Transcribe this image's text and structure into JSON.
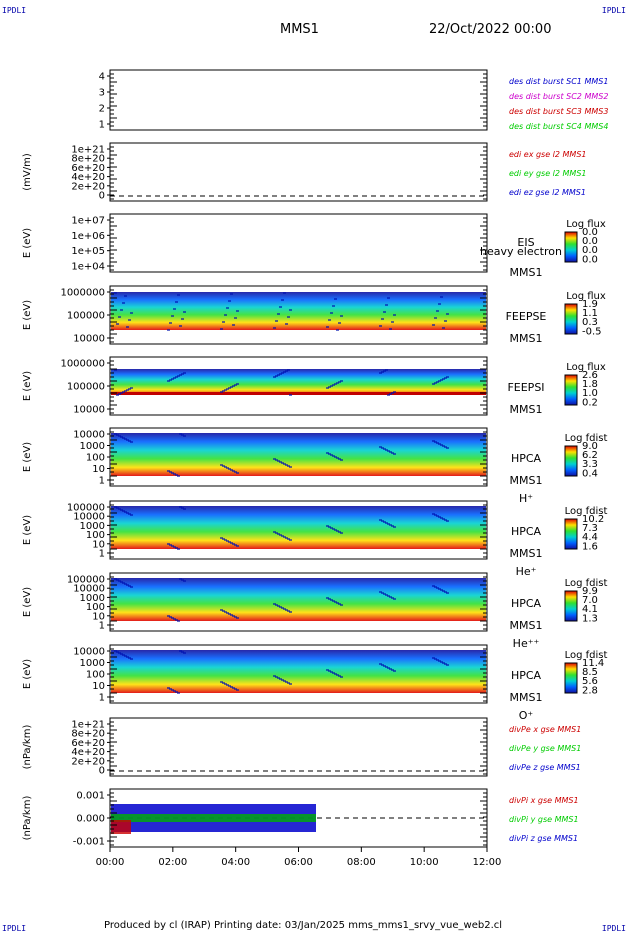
{
  "corners": {
    "tl": "IPDLI",
    "tr": "IPDLI",
    "bl": "IPDLI",
    "br": "IPDLI"
  },
  "header": {
    "mission": "MMS1",
    "date": "22/Oct/2022 00:00"
  },
  "footer": "Produced by cl (IRAP)   Printing date: 03/Jan/2025   mms_mms1_srvy_vue_web2.cl",
  "colors": {
    "c1": "#0000cc",
    "c2": "#cc00cc",
    "c3": "#cc0000",
    "c4": "#00cc00"
  },
  "chart_data": [
    {
      "type": "line",
      "ylabel": "",
      "yticks": [
        "4",
        "3",
        "2",
        "1"
      ],
      "legend": [
        "des dist burst SC1 MMS1",
        "des dist burst SC2 MMS2",
        "des dist burst SC3 MMS3",
        "des dist burst SC4 MMS4"
      ]
    },
    {
      "type": "line",
      "ylabel": "(mV/m)",
      "yticks": [
        "1e+21",
        "8e+20",
        "6e+20",
        "4e+20",
        "2e+20",
        "0"
      ],
      "legend": [
        "edi ex gse l2 MMS1",
        "edi ey gse l2 MMS1",
        "edi ez gse l2 MMS1"
      ]
    },
    {
      "type": "heatmap",
      "ylabel": "E (eV)",
      "yticks": [
        "1e+07",
        "1e+06",
        "1e+05",
        "1e+04"
      ],
      "label": [
        "EIS",
        "MMS1"
      ],
      "overlay": "heavy electron to",
      "cbar_title": "Log flux",
      "cbar_ticks": [
        "0.0",
        "0.0",
        "0.0",
        "0.0"
      ]
    },
    {
      "type": "heatmap",
      "ylabel": "E (eV)",
      "yticks": [
        "1000000",
        "100000",
        "10000"
      ],
      "label": [
        "FEEPSE",
        "MMS1"
      ],
      "cbar_title": "Log flux",
      "cbar_ticks": [
        "1.9",
        "1.1",
        "0.3",
        "-0.5"
      ]
    },
    {
      "type": "heatmap",
      "ylabel": "E (eV)",
      "yticks": [
        "1000000",
        "100000",
        "10000"
      ],
      "label": [
        "FEEPSI",
        "MMS1"
      ],
      "cbar_title": "Log flux",
      "cbar_ticks": [
        "2.6",
        "1.8",
        "1.0",
        "0.2"
      ]
    },
    {
      "type": "heatmap",
      "ylabel": "E (eV)",
      "yticks": [
        "10000",
        "1000",
        "100",
        "10",
        "1"
      ],
      "label": [
        "HPCA",
        "MMS1",
        "H⁺"
      ],
      "cbar_title": "Log fdist",
      "cbar_ticks": [
        "9.0",
        "6.2",
        "3.3",
        "0.4"
      ]
    },
    {
      "type": "heatmap",
      "ylabel": "E (eV)",
      "yticks": [
        "100000",
        "10000",
        "1000",
        "100",
        "10",
        "1"
      ],
      "label": [
        "HPCA",
        "MMS1",
        "He⁺"
      ],
      "cbar_title": "Log fdist",
      "cbar_ticks": [
        "10.2",
        "7.3",
        "4.4",
        "1.6"
      ]
    },
    {
      "type": "heatmap",
      "ylabel": "E (eV)",
      "yticks": [
        "100000",
        "10000",
        "1000",
        "100",
        "10",
        "1"
      ],
      "label": [
        "HPCA",
        "MMS1",
        "He⁺⁺"
      ],
      "cbar_title": "Log fdist",
      "cbar_ticks": [
        "9.9",
        "7.0",
        "4.1",
        "1.3"
      ]
    },
    {
      "type": "heatmap",
      "ylabel": "E (eV)",
      "yticks": [
        "10000",
        "1000",
        "100",
        "10",
        "1"
      ],
      "label": [
        "HPCA",
        "MMS1",
        "O⁺"
      ],
      "cbar_title": "Log fdist",
      "cbar_ticks": [
        "11.4",
        "8.5",
        "5.6",
        "2.8"
      ]
    },
    {
      "type": "line",
      "ylabel": "(nPa/km)",
      "yticks": [
        "1e+21",
        "8e+20",
        "6e+20",
        "4e+20",
        "2e+20",
        "0"
      ],
      "legend": [
        "divPe x gse MMS1",
        "divPe y gse MMS1",
        "divPe z gse MMS1"
      ]
    },
    {
      "type": "line",
      "ylabel": "(nPa/km)",
      "yticks": [
        "0.001",
        "0.000",
        "-0.001"
      ],
      "legend": [
        "divPi x gse MMS1",
        "divPi y gse MMS1",
        "divPi z gse MMS1"
      ]
    }
  ],
  "xaxis": {
    "ticks": [
      "00:00",
      "02:00",
      "04:00",
      "06:00",
      "08:00",
      "10:00",
      "12:00"
    ]
  }
}
